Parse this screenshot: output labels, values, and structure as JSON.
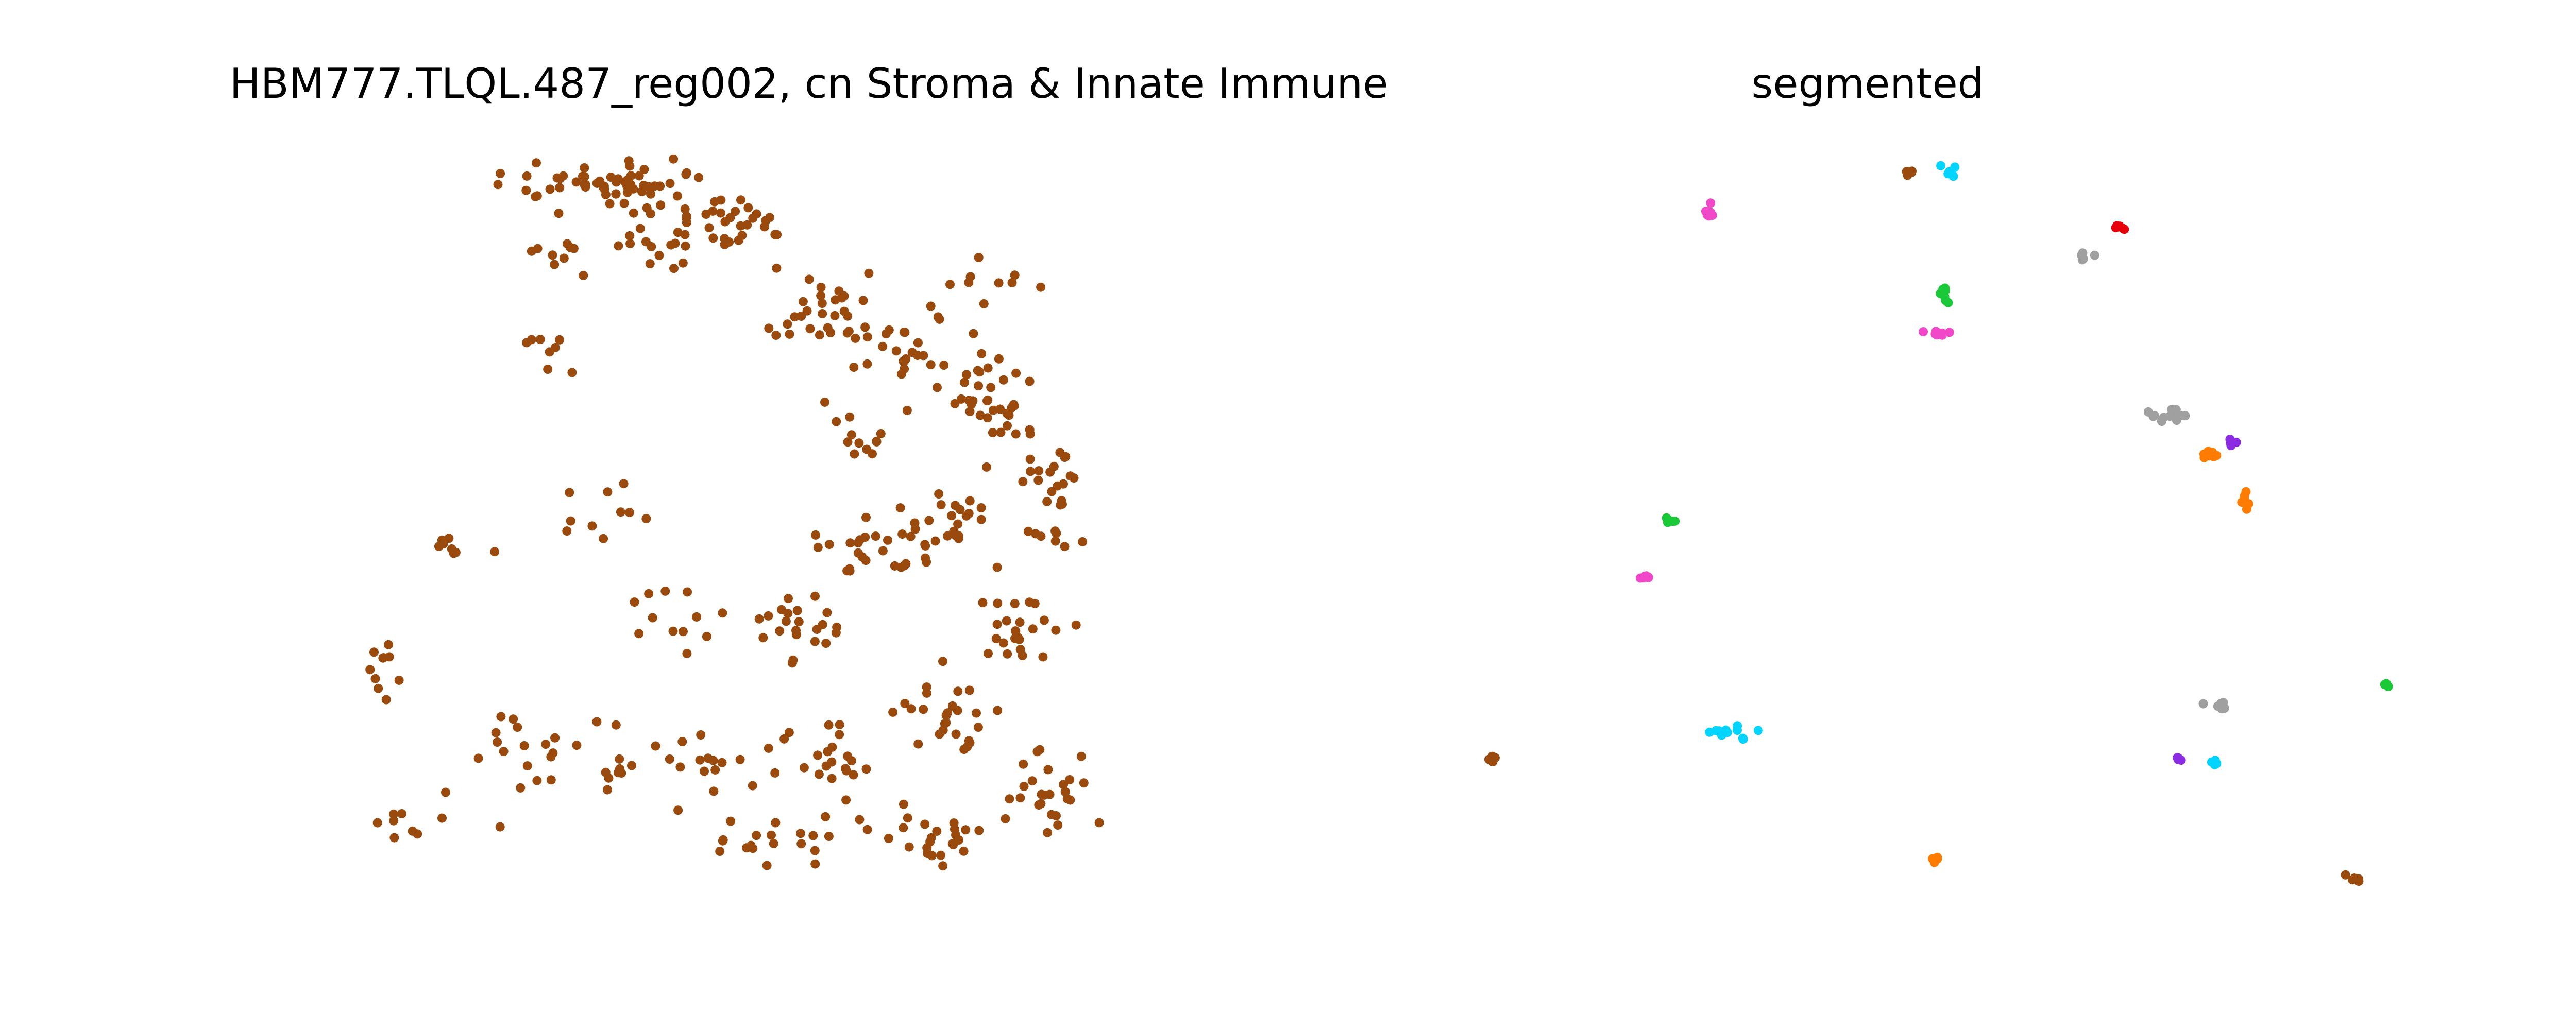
{
  "chart_data": [
    {
      "type": "scatter",
      "title": "HBM777.TLQL.487_reg002, cn Stroma & Innate Immune",
      "xlabel": "",
      "ylabel": "",
      "xlim": [
        0,
        1000
      ],
      "ylim": [
        0,
        1000
      ],
      "axes_visible": false,
      "grid": false,
      "legend": false,
      "colors": {
        "points": "#9a4a0c"
      },
      "note_points": "all cells belonging to the cellular neighborhood (approximate positions in normalized region units, y increases downward)",
      "seed": 777,
      "clusters": [
        [
          300,
          40,
          120,
          35,
          60
        ],
        [
          450,
          90,
          80,
          40,
          22
        ],
        [
          380,
          120,
          80,
          50,
          26
        ],
        [
          560,
          210,
          60,
          50,
          28
        ],
        [
          660,
          270,
          70,
          60,
          30
        ],
        [
          760,
          340,
          60,
          70,
          34
        ],
        [
          820,
          450,
          40,
          80,
          28
        ],
        [
          700,
          500,
          80,
          60,
          28
        ],
        [
          610,
          540,
          60,
          40,
          22
        ],
        [
          520,
          640,
          60,
          50,
          22
        ],
        [
          560,
          820,
          70,
          60,
          24
        ],
        [
          700,
          760,
          60,
          70,
          26
        ],
        [
          790,
          640,
          50,
          60,
          24
        ],
        [
          820,
          860,
          50,
          60,
          26
        ],
        [
          690,
          920,
          70,
          40,
          24
        ],
        [
          500,
          930,
          100,
          40,
          18
        ],
        [
          410,
          830,
          70,
          60,
          14
        ],
        [
          300,
          800,
          70,
          60,
          14
        ],
        [
          190,
          800,
          60,
          60,
          14
        ],
        [
          80,
          900,
          60,
          40,
          10
        ],
        [
          30,
          680,
          30,
          50,
          10
        ],
        [
          110,
          530,
          60,
          30,
          8
        ],
        [
          300,
          480,
          60,
          40,
          10
        ],
        [
          380,
          620,
          60,
          60,
          12
        ],
        [
          220,
          260,
          50,
          70,
          8
        ],
        [
          600,
          380,
          40,
          50,
          12
        ],
        [
          760,
          180,
          50,
          30,
          8
        ],
        [
          240,
          120,
          40,
          30,
          8
        ]
      ]
    },
    {
      "type": "scatter",
      "title": "segmented",
      "xlabel": "",
      "ylabel": "",
      "xlim": [
        0,
        1000
      ],
      "ylim": [
        0,
        1000
      ],
      "axes_visible": false,
      "grid": false,
      "legend": false,
      "segments": [
        {
          "color": "#9a4a0c",
          "x": 535,
          "y": 25,
          "sx": 6,
          "sy": 8,
          "n": 5
        },
        {
          "color": "#00d4ff",
          "x": 580,
          "y": 22,
          "sx": 6,
          "sy": 8,
          "n": 6
        },
        {
          "color": "#f048c8",
          "x": 300,
          "y": 80,
          "sx": 6,
          "sy": 18,
          "n": 9
        },
        {
          "color": "#e8000b",
          "x": 780,
          "y": 100,
          "sx": 8,
          "sy": 3,
          "n": 5
        },
        {
          "color": "#a0a0a0",
          "x": 740,
          "y": 140,
          "sx": 10,
          "sy": 12,
          "n": 6
        },
        {
          "color": "#1ac938",
          "x": 575,
          "y": 185,
          "sx": 5,
          "sy": 10,
          "n": 7
        },
        {
          "color": "#f048c8",
          "x": 570,
          "y": 240,
          "sx": 18,
          "sy": 3,
          "n": 8
        },
        {
          "color": "#a0a0a0",
          "x": 840,
          "y": 355,
          "sx": 30,
          "sy": 12,
          "n": 12
        },
        {
          "color": "#8b2be2",
          "x": 910,
          "y": 390,
          "sx": 5,
          "sy": 4,
          "n": 4
        },
        {
          "color": "#ff7c00",
          "x": 885,
          "y": 405,
          "sx": 8,
          "sy": 5,
          "n": 8
        },
        {
          "color": "#ff7c00",
          "x": 925,
          "y": 465,
          "sx": 5,
          "sy": 10,
          "n": 6
        },
        {
          "color": "#1ac938",
          "x": 255,
          "y": 490,
          "sx": 8,
          "sy": 6,
          "n": 6
        },
        {
          "color": "#f048c8",
          "x": 225,
          "y": 570,
          "sx": 8,
          "sy": 3,
          "n": 6
        },
        {
          "color": "#1ac938",
          "x": 1090,
          "y": 715,
          "sx": 4,
          "sy": 5,
          "n": 4
        },
        {
          "color": "#a0a0a0",
          "x": 895,
          "y": 745,
          "sx": 18,
          "sy": 8,
          "n": 8
        },
        {
          "color": "#00d4ff",
          "x": 330,
          "y": 780,
          "sx": 30,
          "sy": 12,
          "n": 12
        },
        {
          "color": "#8b2be2",
          "x": 850,
          "y": 815,
          "sx": 4,
          "sy": 3,
          "n": 4
        },
        {
          "color": "#00d4ff",
          "x": 890,
          "y": 820,
          "sx": 6,
          "sy": 8,
          "n": 6
        },
        {
          "color": "#9a4a0c",
          "x": 45,
          "y": 815,
          "sx": 6,
          "sy": 4,
          "n": 6
        },
        {
          "color": "#ff7c00",
          "x": 565,
          "y": 950,
          "sx": 6,
          "sy": 3,
          "n": 4
        },
        {
          "color": "#9a4a0c",
          "x": 1055,
          "y": 975,
          "sx": 10,
          "sy": 5,
          "n": 6
        }
      ]
    }
  ]
}
